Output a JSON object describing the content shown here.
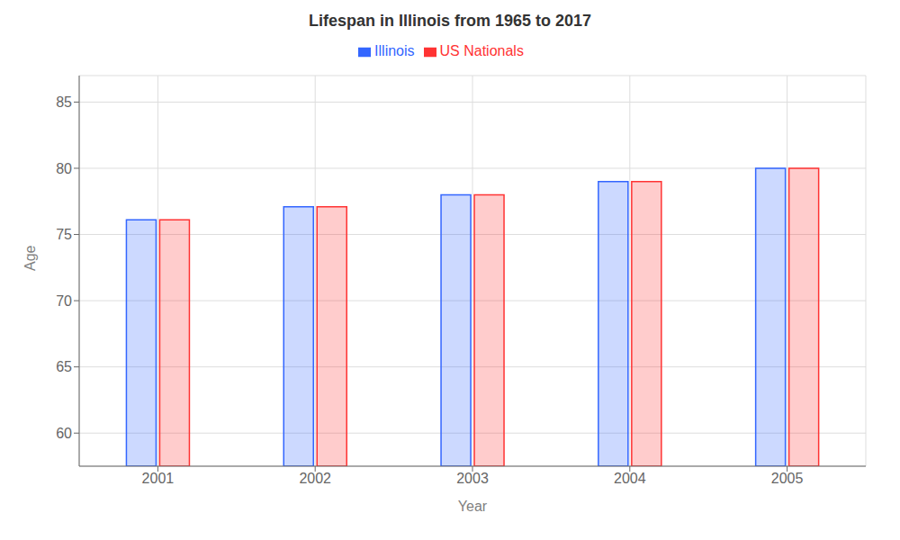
{
  "chart_data": {
    "type": "bar",
    "title": "Lifespan in Illinois from 1965 to 2017",
    "x_label": "Year",
    "y_label": "Age",
    "categories": [
      "2001",
      "2002",
      "2003",
      "2004",
      "2005"
    ],
    "series": [
      {
        "name": "Illinois",
        "color": "#3366ff",
        "values": [
          76.1,
          77.1,
          78.0,
          79.0,
          80.0
        ]
      },
      {
        "name": "US Nationals",
        "color": "#ff3333",
        "values": [
          76.1,
          77.1,
          78.0,
          79.0,
          80.0
        ]
      }
    ],
    "ylim": [
      57.5,
      87
    ],
    "yticks": [
      60,
      65,
      70,
      75,
      80,
      85
    ],
    "grid": true,
    "legend": "top"
  }
}
